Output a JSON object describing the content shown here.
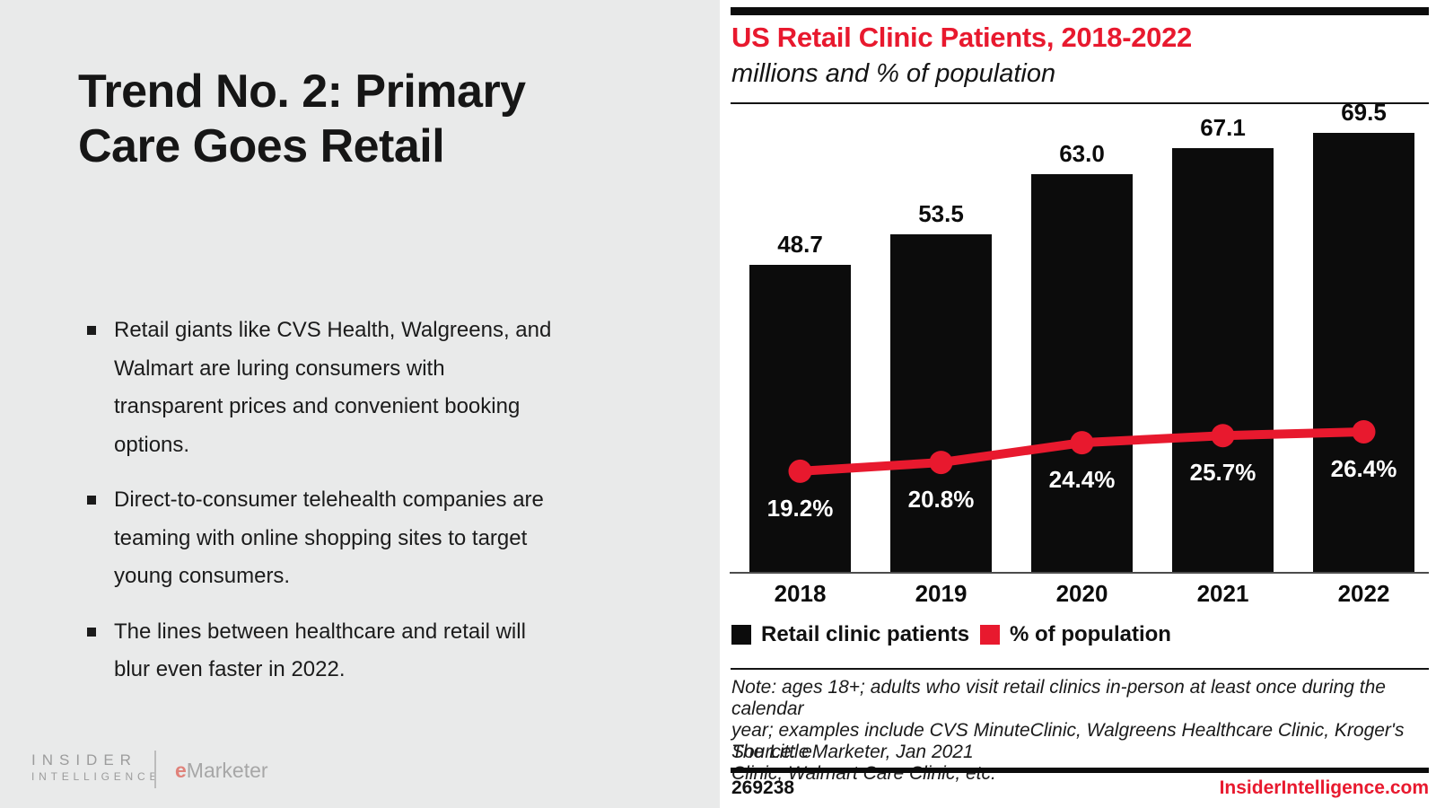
{
  "slide": {
    "title": "Trend No. 2: Primary Care Goes Retail",
    "bullets": [
      {
        "text": "Retail giants like CVS Health, Walgreens, and Walmart are luring consumers with transparent prices and convenient booking options.",
        "lines": [
          "Retail giants like CVS Health, Walgreens, and",
          "Walmart are luring consumers with",
          "transparent prices and convenient booking",
          "options."
        ]
      },
      {
        "text": "Direct-to-consumer telehealth companies are teaming with online shopping sites to target young consumers.",
        "lines": [
          "Direct-to-consumer telehealth companies are",
          "teaming with online shopping sites to target",
          "young consumers."
        ]
      },
      {
        "text": "The lines between healthcare and retail will blur even faster in 2022.",
        "lines": [
          "The lines between healthcare and retail will",
          "blur even faster in 2022."
        ]
      }
    ]
  },
  "logos": {
    "insider_line1": "INSIDER",
    "insider_line2": "INTELLIGENCE",
    "emarketer_e": "e",
    "emarketer_rest": "Marketer"
  },
  "chart": {
    "title": "US Retail Clinic Patients, 2018-2022",
    "subtitle": "millions and % of population",
    "legend": [
      {
        "label": "Retail clinic patients",
        "color": "#0c0c0c"
      },
      {
        "label": "% of population",
        "color": "#e8192e"
      }
    ],
    "note_lines": [
      "Note: ages 18+; adults who visit retail clinics in-person at least once during the calendar",
      "year; examples include CVS MinuteClinic, Walgreens Healthcare Clinic, Kroger's The Little",
      "Clinic, Walmart Care Clinic, etc."
    ],
    "source": "Source: eMarketer, Jan 2021",
    "chart_id": "269238",
    "site": "InsiderIntelligence.com"
  },
  "chart_data": {
    "type": "bar",
    "subtype": "bar-with-line-overlay",
    "categories": [
      "2018",
      "2019",
      "2020",
      "2021",
      "2022"
    ],
    "series": [
      {
        "name": "Retail clinic patients",
        "type": "bar",
        "unit": "millions",
        "color": "#0c0c0c",
        "values": [
          48.7,
          53.5,
          63.0,
          67.1,
          69.5
        ]
      },
      {
        "name": "% of population",
        "type": "line",
        "unit": "%",
        "color": "#e8192e",
        "values": [
          19.2,
          20.8,
          24.4,
          25.7,
          26.4
        ]
      }
    ],
    "title": "US Retail Clinic Patients, 2018-2022",
    "xlabel": "",
    "ylabel": "millions and % of population",
    "ylim": [
      0,
      74
    ],
    "grid": false,
    "value_labels": "above bars, one decimal",
    "pct_labels": "white, inside bars below line points",
    "legend_position": "below x-axis"
  },
  "colors": {
    "left_background": "#e9eaea",
    "right_background": "#ffffff",
    "accent_red": "#e8192e",
    "bar_black": "#0c0c0c",
    "logo_gray": "#9c9c9c",
    "emarketer_red": "#e0827a"
  }
}
